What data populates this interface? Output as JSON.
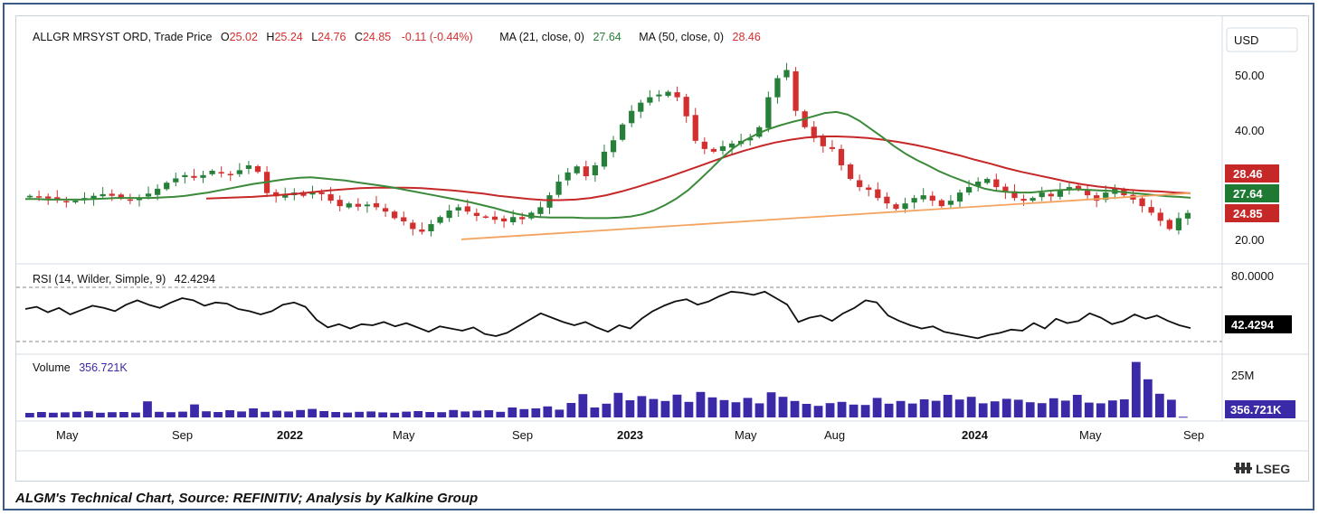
{
  "header": {
    "title": "ALLGR MRSYST ORD, Trade Price",
    "ohlc": [
      {
        "label": "O",
        "value": "25.02"
      },
      {
        "label": "H",
        "value": "25.24"
      },
      {
        "label": "L",
        "value": "24.76"
      },
      {
        "label": "C",
        "value": "24.85"
      }
    ],
    "change": "-0.11 (-0.44%)",
    "ma21_label": "MA (21, close, 0)",
    "ma21_value": "27.64",
    "ma50_label": "MA (50, close, 0)",
    "ma50_value": "28.46"
  },
  "colors": {
    "up": "#26803a",
    "down": "#d32f2f",
    "ma21": "#3a8a3a",
    "ma50": "#c62828",
    "trendline": "#f4a460",
    "rsi": "#111111",
    "volume": "#3b2aa8",
    "ohlc_value": "#d32f2f",
    "ma21_value": "#26803a",
    "ma50_value": "#d32f2f"
  },
  "currency": "USD",
  "rsi": {
    "label": "RSI (14, Wilder, Simple, 9)",
    "value": "42.4294",
    "level_label": "80.0000"
  },
  "volume": {
    "label": "Volume",
    "value": "356.721K",
    "axis_label": "25M"
  },
  "price_axis_labels": [
    "50.00",
    "40.00",
    "20.00"
  ],
  "price_tags": {
    "ma50": "28.46",
    "ma21": "27.64",
    "close": "24.85"
  },
  "x_axis_labels": [
    "May",
    "Sep",
    "2022",
    "May",
    "Sep",
    "2023",
    "May",
    "Aug",
    "2024",
    "May",
    "Sep"
  ],
  "logo": "LSEG",
  "caption": "ALGM's Technical Chart, Source: REFINITIV; Analysis by Kalkine Group",
  "chart_data": {
    "type": "candlestick",
    "title": "ALLGR MRSYST ORD, Trade Price",
    "x_ticks": [
      "May",
      "Sep",
      "2022",
      "May",
      "Sep",
      "2023",
      "May",
      "Aug",
      "2024",
      "May",
      "Sep"
    ],
    "y_ticks": [
      20,
      40,
      50
    ],
    "ylim": [
      17.5,
      55
    ],
    "rsi_ylim": [
      20,
      85
    ],
    "volume_ylim_millions": [
      0,
      32
    ],
    "price": [
      28,
      27.8,
      27.5,
      27.2,
      26.8,
      27.1,
      27.6,
      28.0,
      28.3,
      28.0,
      27.5,
      27.2,
      27.7,
      28.4,
      29.3,
      30.4,
      31.2,
      31.8,
      31.3,
      31.8,
      32.6,
      32.1,
      31.9,
      32.7,
      33.6,
      32.4,
      28.5,
      27.9,
      28.2,
      28.6,
      28.0,
      28.8,
      28.3,
      27.1,
      26.1,
      26.6,
      26.0,
      26.4,
      25.9,
      25.1,
      23.9,
      23.3,
      21.9,
      21.4,
      22.8,
      24.1,
      25.3,
      25.9,
      25.1,
      24.3,
      24.1,
      23.6,
      23.3,
      24.1,
      23.7,
      24.9,
      25.9,
      28.1,
      30.6,
      32.3,
      33.4,
      31.6,
      33.6,
      36.1,
      38.2,
      41.1,
      43.6,
      45.1,
      46.1,
      46.6,
      47.1,
      46.1,
      42.6,
      38.1,
      36.6,
      36.1,
      37.1,
      37.6,
      38.1,
      38.6,
      40.6,
      46.1,
      49.6,
      51.1,
      43.6,
      40.6,
      38.6,
      37.1,
      36.6,
      33.6,
      31.1,
      29.6,
      29.1,
      27.6,
      26.6,
      25.6,
      26.6,
      27.6,
      28.1,
      27.1,
      26.1,
      27.1,
      28.6,
      29.6,
      30.6,
      31.1,
      29.6,
      28.6,
      27.6,
      27.1,
      27.6,
      28.6,
      27.9,
      29.1,
      29.6,
      29.1,
      28.1,
      27.1,
      28.6,
      29.3,
      28.1,
      27.3,
      26.1,
      24.9,
      23.4,
      21.9,
      23.9,
      24.85
    ],
    "ma21": [
      27.4,
      27.4,
      27.3,
      27.3,
      27.3,
      27.3,
      27.4,
      27.5,
      27.6,
      27.6,
      27.6,
      27.6,
      27.7,
      27.8,
      28.0,
      28.3,
      28.6,
      29.0,
      29.4,
      29.8,
      30.2,
      30.5,
      30.8,
      31.1,
      31.3,
      31.4,
      31.2,
      31.0,
      30.8,
      30.5,
      30.2,
      29.9,
      29.6,
      29.2,
      28.8,
      28.4,
      28.0,
      27.6,
      27.2,
      26.8,
      26.3,
      25.8,
      25.2,
      24.7,
      24.3,
      24.1,
      24.0,
      24.0,
      24.0,
      23.9,
      23.9,
      23.9,
      24.0,
      24.2,
      24.6,
      25.3,
      26.3,
      27.5,
      29.0,
      30.9,
      32.9,
      35.0,
      36.8,
      38.2,
      39.3,
      40.2,
      40.9,
      41.5,
      42.0,
      42.6,
      43.2,
      43.4,
      42.9,
      41.8,
      40.3,
      38.8,
      37.2,
      35.8,
      34.6,
      33.6,
      32.5,
      31.6,
      30.8,
      30.0,
      29.3,
      28.9,
      28.7,
      28.6,
      28.6,
      28.8,
      29.0,
      29.1,
      29.2,
      29.1,
      29.0,
      28.9,
      28.7,
      28.5,
      28.3,
      28.1,
      27.9,
      27.8,
      27.64
    ],
    "ma50": [
      27.5,
      27.6,
      27.7,
      27.8,
      28.0,
      28.2,
      28.4,
      28.7,
      29.0,
      29.2,
      29.4,
      29.5,
      29.5,
      29.5,
      29.4,
      29.2,
      29.0,
      28.7,
      28.4,
      28.0,
      27.7,
      27.4,
      27.2,
      27.2,
      27.3,
      27.6,
      28.1,
      28.8,
      29.6,
      30.5,
      31.4,
      32.4,
      33.4,
      34.4,
      35.4,
      36.3,
      37.1,
      37.8,
      38.3,
      38.7,
      38.9,
      38.9,
      38.8,
      38.6,
      38.3,
      37.9,
      37.4,
      36.8,
      36.1,
      35.4,
      34.6,
      33.9,
      33.1,
      32.4,
      31.8,
      31.2,
      30.6,
      30.1,
      29.7,
      29.4,
      29.1,
      28.9,
      28.8,
      28.6,
      28.46
    ],
    "trendline_from": {
      "date": "Jul 2022",
      "price": 20
    },
    "trendline_to": {
      "date": "Sep 2024",
      "price": 28.5
    },
    "rsi_series": [
      60,
      62,
      57,
      61,
      55,
      59,
      63,
      61,
      58,
      64,
      68,
      64,
      61,
      66,
      70,
      68,
      63,
      66,
      65,
      60,
      58,
      55,
      58,
      64,
      66,
      62,
      50,
      43,
      46,
      42,
      46,
      45,
      48,
      44,
      47,
      43,
      39,
      44,
      42,
      40,
      43,
      37,
      35,
      38,
      44,
      50,
      56,
      52,
      48,
      45,
      48,
      43,
      39,
      45,
      42,
      51,
      58,
      63,
      67,
      69,
      64,
      67,
      72,
      76,
      75,
      73,
      76,
      70,
      64,
      48,
      52,
      54,
      49,
      56,
      61,
      68,
      66,
      54,
      49,
      45,
      42,
      44,
      39,
      37,
      35,
      33,
      36,
      38,
      41,
      40,
      47,
      42,
      51,
      47,
      49,
      56,
      52,
      46,
      49,
      55,
      51,
      54,
      49,
      45,
      42.43
    ],
    "volume_millions": [
      2.5,
      3.0,
      2.6,
      2.8,
      3.1,
      3.4,
      2.6,
      2.9,
      3.0,
      2.7,
      8.9,
      3.1,
      2.9,
      3.2,
      7.2,
      3.4,
      3.0,
      4.0,
      3.3,
      5.0,
      3.1,
      3.7,
      3.3,
      4.1,
      4.7,
      3.5,
      3.0,
      2.7,
      3.1,
      3.3,
      2.8,
      2.6,
      3.2,
      3.5,
      3.0,
      2.9,
      4.1,
      3.3,
      3.7,
      4.0,
      3.1,
      5.5,
      4.6,
      5.0,
      6.1,
      4.3,
      8.0,
      12.9,
      5.5,
      7.6,
      13.6,
      9.5,
      11.8,
      10.2,
      9.1,
      12.6,
      8.6,
      14.1,
      11.1,
      9.6,
      8.4,
      10.8,
      7.8,
      13.9,
      11.4,
      9.1,
      7.5,
      6.4,
      7.9,
      8.6,
      7.1,
      6.9,
      10.8,
      7.6,
      9.1,
      7.7,
      10.0,
      9.2,
      12.5,
      9.9,
      11.4,
      7.8,
      8.9,
      10.3,
      9.8,
      8.4,
      7.9,
      10.6,
      9.3,
      12.5,
      8.2,
      7.8,
      9.4,
      10.0,
      30.7,
      21.1,
      13.1,
      9.8,
      0.36
    ]
  }
}
